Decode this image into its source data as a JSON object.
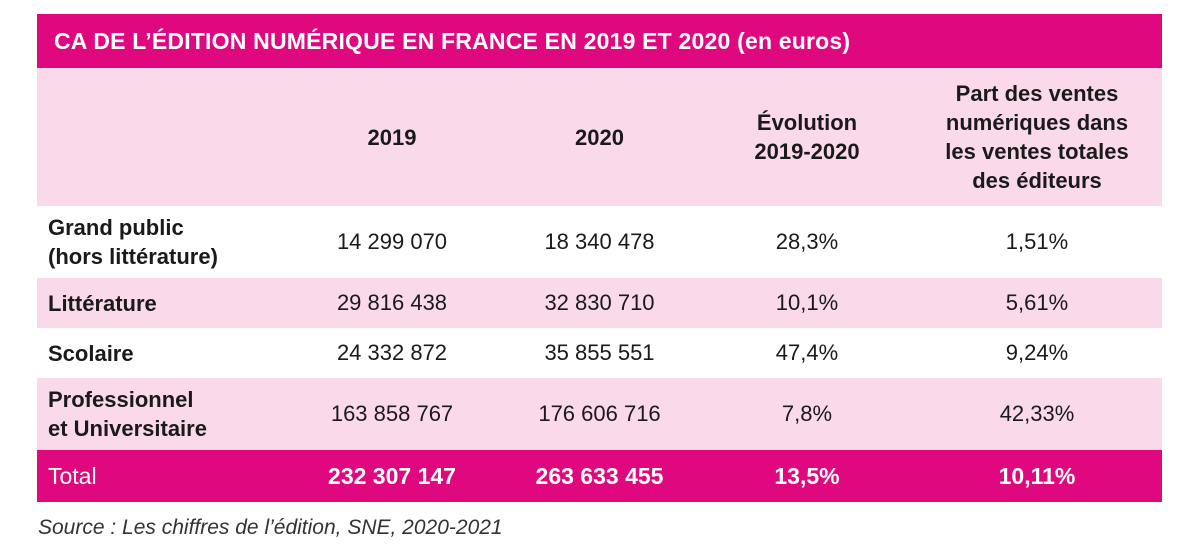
{
  "title": {
    "main": "CA DE L’ÉDITION NUMÉRIQUE EN FRANCE EN 2019 ET 2020",
    "unit": "(en euros)"
  },
  "headers": {
    "col1": "2019",
    "col2": "2020",
    "col3_line1": "Évolution",
    "col3_line2": "2019-2020",
    "col4_line1": "Part des ventes",
    "col4_line2": "numériques dans",
    "col4_line3": "les ventes totales",
    "col4_line4": "des éditeurs"
  },
  "rows": [
    {
      "label_line1": "Grand public",
      "label_line2": "(hors littérature)",
      "v2019": "14 299 070",
      "v2020": "18 340 478",
      "evolution": "28,3%",
      "part": "1,51%"
    },
    {
      "label_line1": "Littérature",
      "label_line2": "",
      "v2019": "29 816 438",
      "v2020": "32 830 710",
      "evolution": "10,1%",
      "part": "5,61%"
    },
    {
      "label_line1": "Scolaire",
      "label_line2": "",
      "v2019": "24 332 872",
      "v2020": "35 855 551",
      "evolution": "47,4%",
      "part": "9,24%"
    },
    {
      "label_line1": "Professionnel",
      "label_line2": "et Universitaire",
      "v2019": "163 858 767",
      "v2020": "176 606 716",
      "evolution": "7,8%",
      "part": "42,33%"
    }
  ],
  "total": {
    "label": "Total",
    "v2019": "232 307 147",
    "v2020": "263 633 455",
    "evolution": "13,5%",
    "part": "10,11%"
  },
  "source": "Source : Les chiffres de l’édition, SNE, 2020-2021",
  "colors": {
    "accent": "#e0087f",
    "row_tint": "#f9d9ea"
  }
}
